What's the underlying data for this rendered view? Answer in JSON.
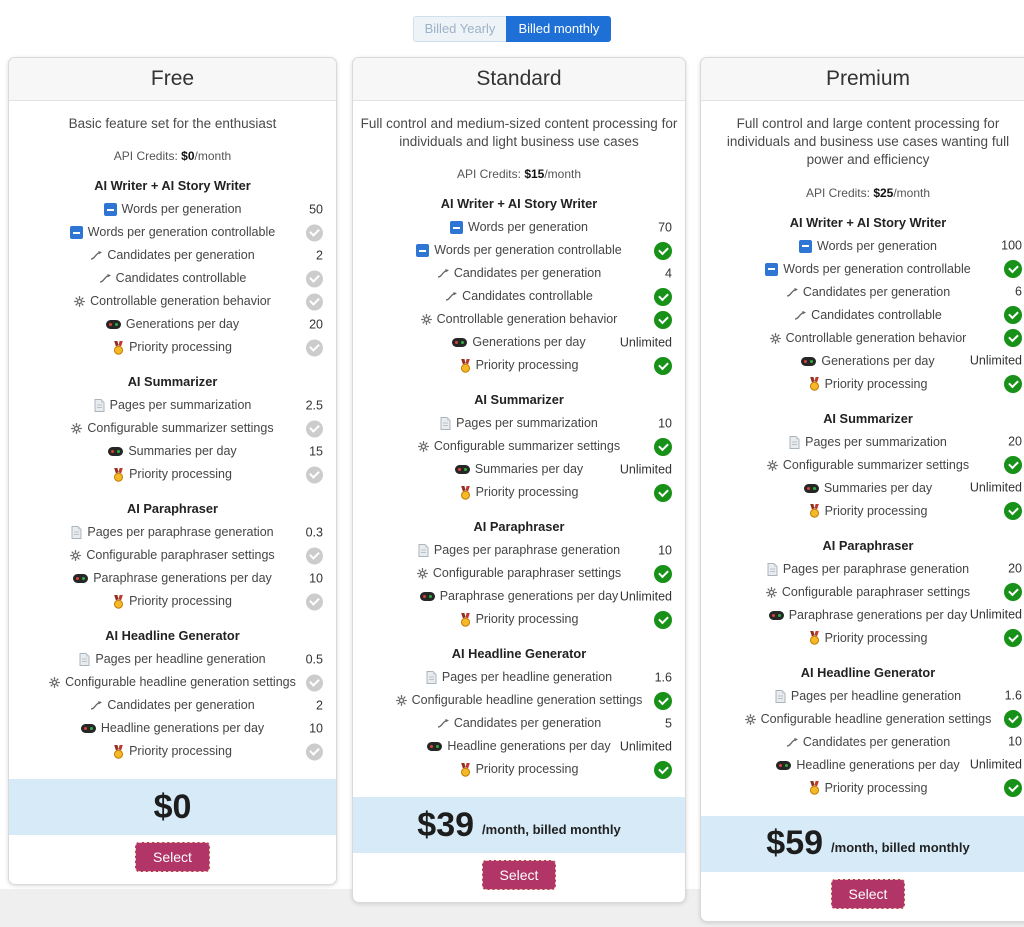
{
  "toggle": {
    "yearly_label": "Billed Yearly",
    "monthly_label": "Billed monthly",
    "active": "Billed monthly"
  },
  "colors": {
    "accent_blue": "#1e70d6",
    "check_on_green": "#179117",
    "check_off_gray": "#cccccc",
    "price_band_blue": "#d7eaf8",
    "select_magenta": "#b13567",
    "words_icon_blue": "#2e75d4"
  },
  "plans": [
    {
      "name": "Free",
      "description": "Basic feature set for the enthusiast",
      "api_credits": {
        "prefix": "API Credits: ",
        "amount": "$0",
        "suffix": "/month"
      },
      "sections": [
        {
          "title": "AI Writer + AI Story Writer",
          "features": [
            {
              "icon": "words-icon",
              "label": "Words per generation",
              "value": "50"
            },
            {
              "icon": "words-icon",
              "label": "Words per generation controllable",
              "value": "check-off"
            },
            {
              "icon": "candidates-icon",
              "label": "Candidates per generation",
              "value": "2"
            },
            {
              "icon": "candidates-icon",
              "label": "Candidates controllable",
              "value": "check-off"
            },
            {
              "icon": "gear-icon",
              "label": "Controllable generation behavior",
              "value": "check-off"
            },
            {
              "icon": "meter-icon",
              "label": "Generations per day",
              "value": "20"
            },
            {
              "icon": "medal-icon",
              "label": "Priority processing",
              "value": "check-off"
            }
          ]
        },
        {
          "title": "AI Summarizer",
          "features": [
            {
              "icon": "page-icon",
              "label": "Pages per summarization",
              "value": "2.5"
            },
            {
              "icon": "gear-icon",
              "label": "Configurable summarizer settings",
              "value": "check-off"
            },
            {
              "icon": "meter-icon",
              "label": "Summaries per day",
              "value": "15"
            },
            {
              "icon": "medal-icon",
              "label": "Priority processing",
              "value": "check-off"
            }
          ]
        },
        {
          "title": "AI Paraphraser",
          "features": [
            {
              "icon": "page-icon",
              "label": "Pages per paraphrase generation",
              "value": "0.3"
            },
            {
              "icon": "gear-icon",
              "label": "Configurable paraphraser settings",
              "value": "check-off"
            },
            {
              "icon": "meter-icon",
              "label": "Paraphrase generations per day",
              "value": "10"
            },
            {
              "icon": "medal-icon",
              "label": "Priority processing",
              "value": "check-off"
            }
          ]
        },
        {
          "title": "AI Headline Generator",
          "features": [
            {
              "icon": "page-icon",
              "label": "Pages per headline generation",
              "value": "0.5"
            },
            {
              "icon": "gear-icon",
              "label": "Configurable headline generation settings",
              "value": "check-off"
            },
            {
              "icon": "candidates-icon",
              "label": "Candidates per generation",
              "value": "2"
            },
            {
              "icon": "meter-icon",
              "label": "Headline generations per day",
              "value": "10"
            },
            {
              "icon": "medal-icon",
              "label": "Priority processing",
              "value": "check-off"
            }
          ]
        }
      ],
      "price": {
        "amount": "$0",
        "suffix": ""
      },
      "select_label": "Select"
    },
    {
      "name": "Standard",
      "description": "Full control and medium-sized content processing for individuals and light business use cases",
      "api_credits": {
        "prefix": "API Credits: ",
        "amount": "$15",
        "suffix": "/month"
      },
      "sections": [
        {
          "title": "AI Writer + AI Story Writer",
          "features": [
            {
              "icon": "words-icon",
              "label": "Words per generation",
              "value": "70"
            },
            {
              "icon": "words-icon",
              "label": "Words per generation controllable",
              "value": "check-on"
            },
            {
              "icon": "candidates-icon",
              "label": "Candidates per generation",
              "value": "4"
            },
            {
              "icon": "candidates-icon",
              "label": "Candidates controllable",
              "value": "check-on"
            },
            {
              "icon": "gear-icon",
              "label": "Controllable generation behavior",
              "value": "check-on"
            },
            {
              "icon": "meter-icon",
              "label": "Generations per day",
              "value": "Unlimited"
            },
            {
              "icon": "medal-icon",
              "label": "Priority processing",
              "value": "check-on"
            }
          ]
        },
        {
          "title": "AI Summarizer",
          "features": [
            {
              "icon": "page-icon",
              "label": "Pages per summarization",
              "value": "10"
            },
            {
              "icon": "gear-icon",
              "label": "Configurable summarizer settings",
              "value": "check-on"
            },
            {
              "icon": "meter-icon",
              "label": "Summaries per day",
              "value": "Unlimited"
            },
            {
              "icon": "medal-icon",
              "label": "Priority processing",
              "value": "check-on"
            }
          ]
        },
        {
          "title": "AI Paraphraser",
          "features": [
            {
              "icon": "page-icon",
              "label": "Pages per paraphrase generation",
              "value": "10"
            },
            {
              "icon": "gear-icon",
              "label": "Configurable paraphraser settings",
              "value": "check-on"
            },
            {
              "icon": "meter-icon",
              "label": "Paraphrase generations per day",
              "value": "Unlimited"
            },
            {
              "icon": "medal-icon",
              "label": "Priority processing",
              "value": "check-on"
            }
          ]
        },
        {
          "title": "AI Headline Generator",
          "features": [
            {
              "icon": "page-icon",
              "label": "Pages per headline generation",
              "value": "1.6"
            },
            {
              "icon": "gear-icon",
              "label": "Configurable headline generation settings",
              "value": "check-on"
            },
            {
              "icon": "candidates-icon",
              "label": "Candidates per generation",
              "value": "5"
            },
            {
              "icon": "meter-icon",
              "label": "Headline generations per day",
              "value": "Unlimited"
            },
            {
              "icon": "medal-icon",
              "label": "Priority processing",
              "value": "check-on"
            }
          ]
        }
      ],
      "price": {
        "amount": "$39",
        "suffix": "/month, billed monthly"
      },
      "select_label": "Select"
    },
    {
      "name": "Premium",
      "description": "Full control and large content processing for individuals and business use cases wanting full power and efficiency",
      "api_credits": {
        "prefix": "API Credits: ",
        "amount": "$25",
        "suffix": "/month"
      },
      "sections": [
        {
          "title": "AI Writer + AI Story Writer",
          "features": [
            {
              "icon": "words-icon",
              "label": "Words per generation",
              "value": "100"
            },
            {
              "icon": "words-icon",
              "label": "Words per generation controllable",
              "value": "check-on"
            },
            {
              "icon": "candidates-icon",
              "label": "Candidates per generation",
              "value": "6"
            },
            {
              "icon": "candidates-icon",
              "label": "Candidates controllable",
              "value": "check-on"
            },
            {
              "icon": "gear-icon",
              "label": "Controllable generation behavior",
              "value": "check-on"
            },
            {
              "icon": "meter-icon",
              "label": "Generations per day",
              "value": "Unlimited"
            },
            {
              "icon": "medal-icon",
              "label": "Priority processing",
              "value": "check-on"
            }
          ]
        },
        {
          "title": "AI Summarizer",
          "features": [
            {
              "icon": "page-icon",
              "label": "Pages per summarization",
              "value": "20"
            },
            {
              "icon": "gear-icon",
              "label": "Configurable summarizer settings",
              "value": "check-on"
            },
            {
              "icon": "meter-icon",
              "label": "Summaries per day",
              "value": "Unlimited"
            },
            {
              "icon": "medal-icon",
              "label": "Priority processing",
              "value": "check-on"
            }
          ]
        },
        {
          "title": "AI Paraphraser",
          "features": [
            {
              "icon": "page-icon",
              "label": "Pages per paraphrase generation",
              "value": "20"
            },
            {
              "icon": "gear-icon",
              "label": "Configurable paraphraser settings",
              "value": "check-on"
            },
            {
              "icon": "meter-icon",
              "label": "Paraphrase generations per day",
              "value": "Unlimited"
            },
            {
              "icon": "medal-icon",
              "label": "Priority processing",
              "value": "check-on"
            }
          ]
        },
        {
          "title": "AI Headline Generator",
          "features": [
            {
              "icon": "page-icon",
              "label": "Pages per headline generation",
              "value": "1.6"
            },
            {
              "icon": "gear-icon",
              "label": "Configurable headline generation settings",
              "value": "check-on"
            },
            {
              "icon": "candidates-icon",
              "label": "Candidates per generation",
              "value": "10"
            },
            {
              "icon": "meter-icon",
              "label": "Headline generations per day",
              "value": "Unlimited"
            },
            {
              "icon": "medal-icon",
              "label": "Priority processing",
              "value": "check-on"
            }
          ]
        }
      ],
      "price": {
        "amount": "$59",
        "suffix": "/month, billed monthly"
      },
      "select_label": "Select"
    }
  ]
}
